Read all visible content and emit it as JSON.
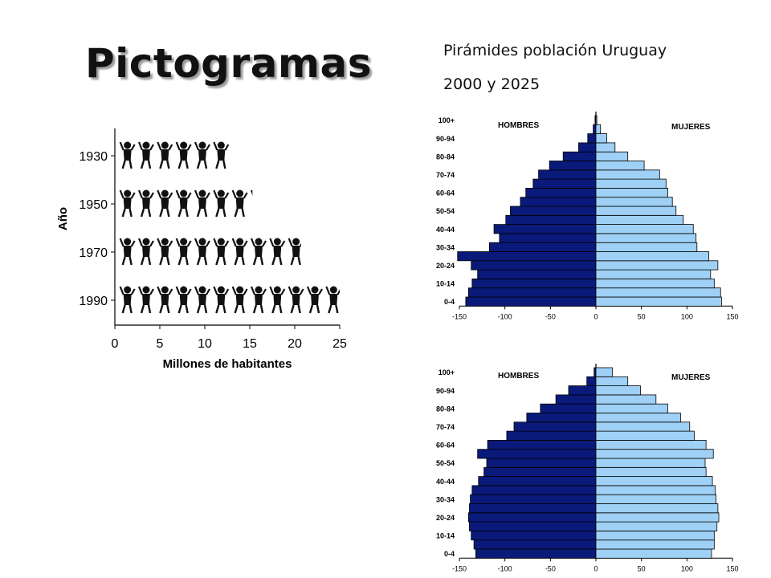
{
  "slide": {
    "title": "Pictogramas",
    "subtitle_line1": "Pirámides población Uruguay",
    "subtitle_line2": "2000 y 2025"
  },
  "chart_data": [
    {
      "type": "bar",
      "orientation": "horizontal",
      "encoding": "pictogram",
      "xlabel": "Millones de habitantes",
      "ylabel": "Año",
      "categories": [
        "1930",
        "1950",
        "1970",
        "1990"
      ],
      "values": [
        12.7,
        15.3,
        20.7,
        25.0
      ],
      "xlim": [
        0,
        25
      ],
      "xticks": [
        0,
        5,
        10,
        15,
        20,
        25
      ]
    },
    {
      "type": "bar",
      "orientation": "horizontal",
      "stacked": "population-pyramid",
      "year_label": "2000",
      "categories": [
        "0-4",
        "5-9",
        "10-14",
        "15-19",
        "20-24",
        "25-29",
        "30-34",
        "35-39",
        "40-44",
        "45-49",
        "50-54",
        "55-59",
        "60-64",
        "65-69",
        "70-74",
        "75-79",
        "80-84",
        "85-89",
        "90-94",
        "95-99",
        "100+"
      ],
      "ytick_labels": [
        "0-4",
        "10-14",
        "20-24",
        "30-34",
        "40-44",
        "50-54",
        "60-64",
        "70-74",
        "80-84",
        "90-94",
        "100+"
      ],
      "series": [
        {
          "name": "HOMBRES",
          "color": "#0a1a7a",
          "values": [
            -143,
            -140,
            -136,
            -130,
            -137,
            -152,
            -117,
            -106,
            -112,
            -99,
            -94,
            -83,
            -77,
            -69,
            -63,
            -51,
            -36,
            -19,
            -9,
            -3,
            -1
          ]
        },
        {
          "name": "MUJERES",
          "color": "#9fd0f5",
          "values": [
            138,
            137,
            130,
            126,
            134,
            124,
            111,
            110,
            107,
            96,
            88,
            84,
            79,
            77,
            70,
            53,
            35,
            21,
            12,
            5,
            1
          ]
        }
      ],
      "xlim": [
        -150,
        150
      ],
      "xticks": [
        -150,
        -100,
        -50,
        0,
        50,
        100,
        150
      ]
    },
    {
      "type": "bar",
      "orientation": "horizontal",
      "stacked": "population-pyramid",
      "year_label": "2025",
      "categories": [
        "0-4",
        "5-9",
        "10-14",
        "15-19",
        "20-24",
        "25-29",
        "30-34",
        "35-39",
        "40-44",
        "45-49",
        "50-54",
        "55-59",
        "60-64",
        "65-69",
        "70-74",
        "75-79",
        "80-84",
        "85-89",
        "90-94",
        "95-99",
        "100+"
      ],
      "ytick_labels": [
        "0-4",
        "10-14",
        "20-24",
        "30-34",
        "40-44",
        "50-54",
        "60-64",
        "70-74",
        "80-84",
        "90-94",
        "100+"
      ],
      "series": [
        {
          "name": "HOMBRES",
          "color": "#0a1a7a",
          "values": [
            -132,
            -134,
            -137,
            -139,
            -140,
            -139,
            -138,
            -136,
            -129,
            -123,
            -120,
            -130,
            -119,
            -98,
            -90,
            -76,
            -61,
            -44,
            -30,
            -10,
            -2
          ]
        },
        {
          "name": "MUJERES",
          "color": "#9fd0f5",
          "values": [
            127,
            130,
            130,
            133,
            135,
            134,
            132,
            131,
            128,
            121,
            120,
            129,
            121,
            108,
            103,
            93,
            79,
            66,
            49,
            35,
            18
          ]
        }
      ],
      "xlim": [
        -150,
        150
      ],
      "xticks": [
        -150,
        -100,
        -50,
        0,
        50,
        100,
        150
      ]
    }
  ]
}
